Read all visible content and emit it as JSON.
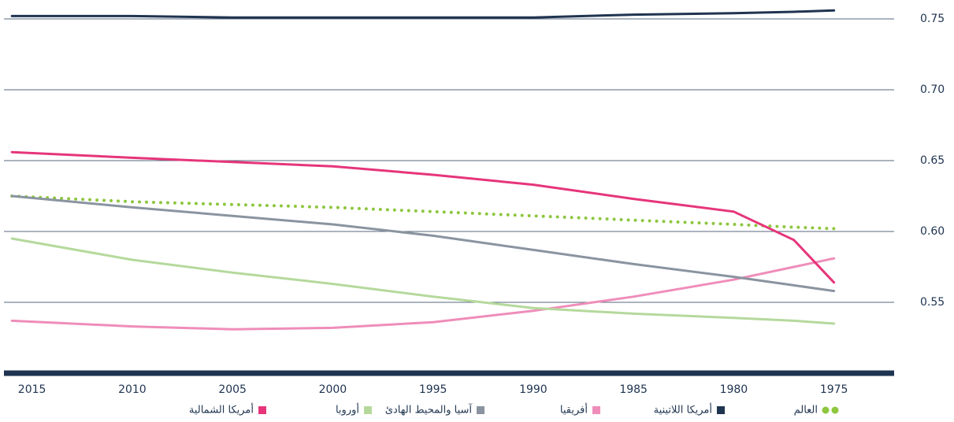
{
  "chart_data": {
    "type": "line",
    "x": [
      2016,
      2010,
      2005,
      2000,
      1995,
      1990,
      1985,
      1980,
      1977,
      1975
    ],
    "series": [
      {
        "name": "العالم",
        "color": "#8dc63f",
        "style": "dotted",
        "values": [
          0.625,
          0.621,
          0.619,
          0.617,
          0.614,
          0.611,
          0.608,
          0.605,
          0.603,
          0.602
        ]
      },
      {
        "name": "أمريكا اللاتينية",
        "color": "#1f3450",
        "style": "solid",
        "values": [
          0.752,
          0.752,
          0.751,
          0.751,
          0.751,
          0.751,
          0.753,
          0.754,
          0.755,
          0.756
        ]
      },
      {
        "name": "أفريقيا",
        "color": "#ef8dba",
        "style": "solid",
        "values": [
          0.537,
          0.533,
          0.531,
          0.532,
          0.536,
          0.544,
          0.554,
          0.566,
          0.575,
          0.581
        ]
      },
      {
        "name": "آسيا والمحيط الهادئ",
        "color": "#8a94a0",
        "style": "solid",
        "values": [
          0.625,
          0.617,
          0.611,
          0.605,
          0.597,
          0.587,
          0.577,
          0.568,
          0.562,
          0.558
        ]
      },
      {
        "name": "أوروبا",
        "color": "#b5d99c",
        "style": "solid",
        "values": [
          0.595,
          0.58,
          0.571,
          0.563,
          0.554,
          0.546,
          0.542,
          0.539,
          0.537,
          0.535
        ]
      },
      {
        "name": "أمريكا الشمالية",
        "color": "#e6357a",
        "style": "solid",
        "values": [
          0.656,
          0.652,
          0.649,
          0.646,
          0.64,
          0.633,
          0.623,
          0.614,
          0.594,
          0.564
        ]
      }
    ],
    "xlim": [
      2016.4,
      1972
    ],
    "xticks": [
      2015,
      2010,
      2005,
      2000,
      1995,
      1990,
      1985,
      1980,
      1975
    ],
    "ylim": [
      0.5,
      0.765
    ],
    "yticks": [
      {
        "value": 0.55,
        "label": "0.55"
      },
      {
        "value": 0.6,
        "label": "0.60"
      },
      {
        "value": 0.65,
        "label": "0.65"
      },
      {
        "value": 0.7,
        "label": "0.70"
      },
      {
        "value": 0.75,
        "label": "0.75"
      }
    ],
    "grid": true
  }
}
